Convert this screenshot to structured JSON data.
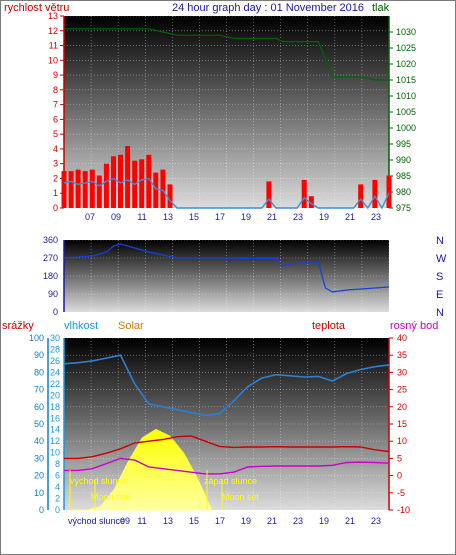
{
  "header": {
    "wind_label": "rychlost větru",
    "title": "24 hour graph day : 01 November 2016",
    "pressure_label": "tlak"
  },
  "colors": {
    "wind": "#ff0000",
    "gust": "#3b8fd6",
    "pressure": "#006400",
    "direction": "#1540e0",
    "humidity": "#2f7fd0",
    "solar": "#ffff20",
    "temperature": "#cc0000",
    "dewpoint": "#cc00cc",
    "rain": "#0b7fd1",
    "axis_left": "#cc0000",
    "axis_humidity": "#1a9ae0"
  },
  "chart_data": [
    {
      "type": "line",
      "title": "24 hour graph day : 01 November 2016",
      "ylabel": "rychlost větru",
      "y2label": "tlak",
      "ylim": [
        0,
        13
      ],
      "y2lim": [
        975,
        1035
      ],
      "xticks": [
        "07",
        "09",
        "11",
        "13",
        "15",
        "17",
        "19",
        "21",
        "23",
        "19",
        "21",
        "23"
      ],
      "yticks": [
        0,
        1,
        2,
        3,
        4,
        5,
        6,
        7,
        8,
        9,
        10,
        11,
        12,
        13
      ],
      "y2ticks": [
        975,
        980,
        985,
        990,
        995,
        1000,
        1005,
        1010,
        1015,
        1020,
        1025,
        1030
      ],
      "series": [
        {
          "key": "wind",
          "x": [
            0,
            0.5,
            1,
            1.5,
            2,
            2.5,
            3,
            3.5,
            4,
            4.5,
            5,
            5.5,
            6,
            6.5,
            7,
            7.5,
            8,
            8.5,
            9,
            9.5,
            10,
            10.5,
            11,
            11.5,
            12,
            12.5,
            13,
            13.5,
            14,
            14.5,
            15,
            15.5,
            16,
            16.5,
            17,
            17.5,
            18,
            18.5,
            19,
            19.5,
            20,
            20.5,
            21,
            21.5,
            22,
            22.5,
            23
          ],
          "values": [
            2.5,
            2.5,
            2.6,
            2.5,
            2.6,
            2.2,
            3.0,
            3.5,
            3.6,
            4.2,
            3.2,
            3.3,
            3.6,
            2.4,
            2.6,
            1.6,
            0,
            0,
            0,
            0,
            0,
            0,
            0,
            0,
            0,
            0,
            0,
            0,
            0,
            1.8,
            0,
            0,
            0,
            0,
            1.9,
            0.8,
            0,
            0,
            0,
            0,
            0,
            0,
            1.6,
            0,
            1.9,
            0,
            2.2
          ]
        },
        {
          "key": "gust",
          "x": [
            0,
            0.5,
            1,
            1.5,
            2,
            2.5,
            3,
            3.5,
            4,
            4.5,
            5,
            5.5,
            6,
            6.5,
            7,
            7.5,
            8,
            8.5,
            9,
            9.5,
            10,
            10.5,
            11,
            11.5,
            12,
            12.5,
            13,
            13.5,
            14,
            14.5,
            15,
            15.5,
            16,
            16.5,
            17,
            17.5,
            18,
            18.5,
            19,
            19.5,
            20,
            20.5,
            21,
            21.5,
            22,
            22.5,
            23
          ],
          "values": [
            1.7,
            1.8,
            1.6,
            1.7,
            1.8,
            1.5,
            1.8,
            2.0,
            1.7,
            1.9,
            1.6,
            1.9,
            2.0,
            1.3,
            1.2,
            0.5,
            0,
            0,
            0,
            0,
            0,
            0,
            0,
            0,
            0,
            0,
            0,
            0,
            0,
            0.6,
            0,
            0,
            0,
            0,
            0.7,
            0.3,
            0,
            0,
            0,
            0,
            0,
            0,
            0.6,
            0,
            0.8,
            0,
            1.0
          ]
        },
        {
          "key": "pressure",
          "x": [
            0,
            1,
            2,
            3,
            4,
            5,
            6,
            7,
            8,
            9,
            10,
            11,
            12,
            13,
            14,
            15,
            15.5,
            16,
            17,
            18,
            19,
            20,
            21,
            22,
            23
          ],
          "values": [
            1031,
            1031,
            1031,
            1031,
            1031,
            1031,
            1031,
            1030,
            1029,
            1029,
            1029,
            1029,
            1028,
            1028,
            1028,
            1028,
            1027,
            1027,
            1027,
            1027,
            1016,
            1016,
            1016,
            1015,
            1015
          ]
        }
      ]
    },
    {
      "type": "line",
      "ylim": [
        0,
        360
      ],
      "yticks": [
        0,
        90,
        180,
        270,
        360
      ],
      "right_labels": [
        "N",
        "W",
        "S",
        "E",
        "N"
      ],
      "series": [
        {
          "key": "direction",
          "x": [
            0,
            1,
            2,
            3,
            3.5,
            4,
            5,
            6,
            7,
            8,
            9,
            10,
            11,
            12,
            13,
            14,
            15,
            15.5,
            16,
            17,
            18,
            18.5,
            19,
            20,
            21,
            22,
            23
          ],
          "values": [
            270,
            275,
            280,
            300,
            330,
            340,
            320,
            300,
            285,
            270,
            270,
            270,
            270,
            270,
            268,
            268,
            268,
            230,
            240,
            250,
            250,
            120,
            100,
            110,
            115,
            120,
            125
          ]
        }
      ]
    },
    {
      "type": "line",
      "labels": {
        "rain": "srážky",
        "humidity": "vlhkost",
        "solar": "Solar",
        "temperature": "teplota",
        "dewpoint": "rosný bod"
      },
      "annotations": {
        "sunrise": "východ slunce",
        "moonrise": "Moon rise",
        "sunset": "západ slunce",
        "moonset": "Moon set",
        "bottom_sunrise": "východ slunce",
        "bottom_time": "09"
      },
      "rain_ticks": [
        0,
        10,
        20,
        30,
        40,
        50,
        60,
        70,
        80,
        90,
        100
      ],
      "humidity_ticks": [
        0,
        2,
        4,
        6,
        8,
        10,
        12,
        14,
        16,
        18,
        20,
        22,
        24,
        26,
        28,
        30
      ],
      "temp_ticks": [
        -10,
        -5,
        0,
        5,
        10,
        15,
        20,
        25,
        30,
        35,
        40
      ],
      "xticks": [
        "11",
        "13",
        "15",
        "17",
        "19",
        "21",
        "23",
        "19",
        "21",
        "23"
      ],
      "series": [
        {
          "key": "humidity",
          "x": [
            0,
            1,
            2,
            3,
            4,
            5,
            6,
            7,
            8,
            9,
            10,
            11,
            12,
            13,
            14,
            15,
            16,
            17,
            18,
            19,
            20,
            21,
            22,
            23
          ],
          "values": [
            25.5,
            25.7,
            26.0,
            26.5,
            27.0,
            22.0,
            18.5,
            18.0,
            17.5,
            17.0,
            16.5,
            16.8,
            19.0,
            21.5,
            23.0,
            23.6,
            23.4,
            23.2,
            23.3,
            22.5,
            23.8,
            24.5,
            25.0,
            25.3
          ]
        },
        {
          "key": "temperature",
          "x": [
            0,
            1,
            2,
            3,
            4,
            5,
            6,
            7,
            8,
            9,
            10,
            11,
            12,
            13,
            14,
            15,
            16,
            17,
            18,
            19,
            20,
            21,
            22,
            23
          ],
          "values": [
            5.0,
            5.0,
            5.5,
            6.5,
            7.8,
            9.5,
            10.0,
            10.5,
            11.3,
            11.5,
            10.0,
            8.5,
            8.2,
            8.3,
            8.3,
            8.4,
            8.3,
            8.3,
            8.3,
            8.3,
            8.4,
            8.3,
            7.5,
            7.0
          ]
        },
        {
          "key": "dewpoint",
          "x": [
            0,
            1,
            2,
            3,
            4,
            5,
            6,
            7,
            8,
            9,
            10,
            11,
            12,
            13,
            14,
            15,
            16,
            17,
            18,
            19,
            20,
            21,
            22,
            23
          ],
          "values": [
            1.5,
            1.5,
            2.0,
            3.5,
            5.0,
            4.5,
            2.5,
            2.0,
            1.5,
            1.0,
            0.5,
            0.5,
            1.0,
            2.5,
            2.7,
            2.8,
            2.8,
            2.8,
            2.8,
            3.0,
            3.8,
            3.9,
            3.8,
            3.6
          ]
        },
        {
          "key": "solar",
          "x": [
            0,
            1,
            2,
            3,
            4,
            5,
            6,
            7,
            8,
            9,
            10
          ],
          "values": [
            0,
            0,
            2,
            12,
            28,
            42,
            47,
            43,
            33,
            18,
            0
          ]
        }
      ]
    }
  ]
}
